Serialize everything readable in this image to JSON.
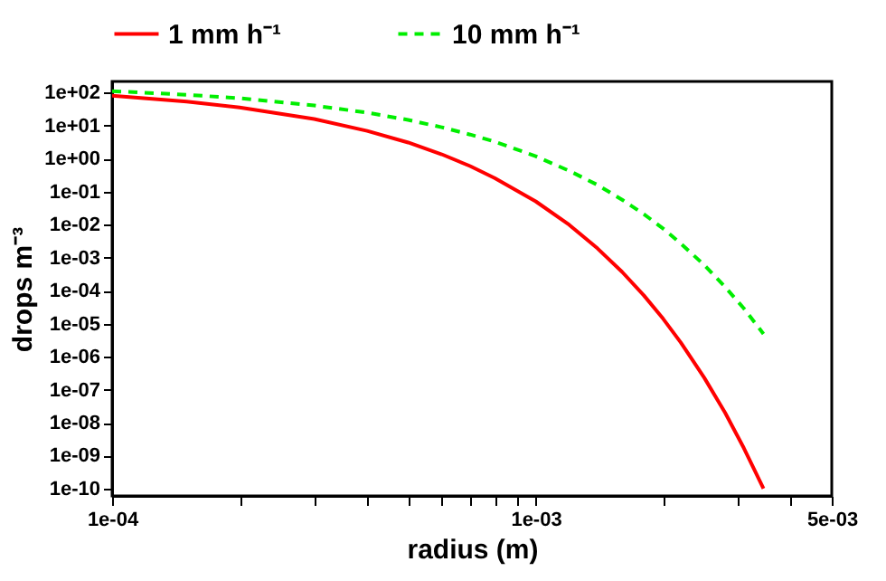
{
  "chart_data": {
    "type": "line",
    "xlabel": "radius (m)",
    "ylabel": "drops m⁻³",
    "log": "xy",
    "grid": false,
    "legend": "top",
    "marker": "none",
    "x": [
      0.0001,
      0.00015,
      0.0002,
      0.0003,
      0.0004,
      0.0005,
      0.0006,
      0.0007,
      0.0008,
      0.001,
      0.0012,
      0.0014,
      0.0016,
      0.0018,
      0.002,
      0.0022,
      0.0025,
      0.0028,
      0.0031,
      0.00345
    ],
    "series": [
      {
        "name": "1 mm h⁻¹",
        "color": "#ff0000",
        "line_style": "solid",
        "values": [
          82,
          54,
          36,
          16,
          7.0,
          3.1,
          1.36,
          0.6,
          0.26,
          0.051,
          0.0099,
          0.0019,
          0.00037,
          7.2e-05,
          1.4e-05,
          2.7e-06,
          2.3e-07,
          2e-08,
          1.7e-09,
          1e-10
        ]
      },
      {
        "name": "10 mm h⁻¹",
        "color": "#00ee00",
        "line_style": "dashed",
        "values": [
          112,
          87,
          68,
          41,
          25,
          15,
          9.0,
          5.4,
          3.3,
          1.19,
          0.43,
          0.16,
          0.057,
          0.021,
          0.0076,
          0.0027,
          0.0006,
          0.00013,
          2.9e-05,
          4.9e-06
        ]
      }
    ],
    "xlim": [
      0.0001,
      0.005
    ],
    "xticks": [
      {
        "value": 0.0001,
        "label": "1e-04"
      },
      {
        "value": 0.0002,
        "label": null
      },
      {
        "value": 0.0003,
        "label": null
      },
      {
        "value": 0.0004,
        "label": null
      },
      {
        "value": 0.0005,
        "label": null
      },
      {
        "value": 0.0006,
        "label": null
      },
      {
        "value": 0.0007,
        "label": null
      },
      {
        "value": 0.0008,
        "label": null
      },
      {
        "value": 0.0009,
        "label": null
      },
      {
        "value": 0.001,
        "label": "1e-03"
      },
      {
        "value": 0.002,
        "label": null
      },
      {
        "value": 0.003,
        "label": null
      },
      {
        "value": 0.004,
        "label": null
      },
      {
        "value": 0.005,
        "label": "5e-03"
      }
    ],
    "ylim": [
      6e-11,
      220
    ],
    "yticks": [
      {
        "value": 100,
        "label": "1e+02"
      },
      {
        "value": 10,
        "label": "1e+01"
      },
      {
        "value": 1,
        "label": "1e+00"
      },
      {
        "value": 0.1,
        "label": "1e-01"
      },
      {
        "value": 0.01,
        "label": "1e-02"
      },
      {
        "value": 0.001,
        "label": "1e-03"
      },
      {
        "value": 0.0001,
        "label": "1e-04"
      },
      {
        "value": 1e-05,
        "label": "1e-05"
      },
      {
        "value": 1e-06,
        "label": "1e-06"
      },
      {
        "value": 1e-07,
        "label": "1e-07"
      },
      {
        "value": 1e-08,
        "label": "1e-08"
      },
      {
        "value": 1e-09,
        "label": "1e-09"
      },
      {
        "value": 1e-10,
        "label": "1e-10"
      }
    ]
  }
}
